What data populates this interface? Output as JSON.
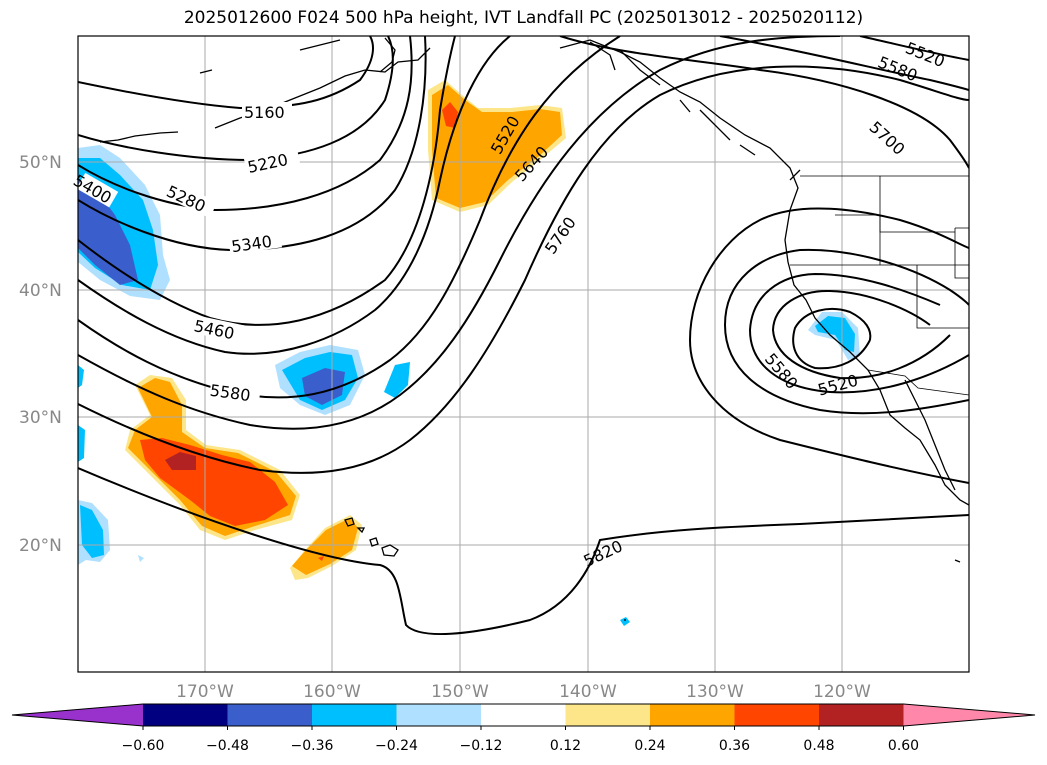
{
  "title": "2025012600 F024 500 hPa height, IVT Landfall PC (2025013012 - 2025020112)",
  "lat_labels": [
    "50°N",
    "40°N",
    "30°N",
    "20°N"
  ],
  "lon_labels": [
    "170°W",
    "160°W",
    "150°W",
    "140°W",
    "130°W",
    "120°W"
  ],
  "contour_labels": [
    "5160",
    "5220",
    "5280",
    "5340",
    "5400",
    "5460",
    "5580",
    "5520",
    "5640",
    "5760",
    "5820",
    "5520",
    "5580",
    "5700",
    "5580",
    "5520"
  ],
  "colorbar": {
    "ticks": [
      "−0.60",
      "−0.48",
      "−0.36",
      "−0.24",
      "−0.12",
      "0.12",
      "0.24",
      "0.36",
      "0.48",
      "0.60"
    ],
    "colors": [
      "#9932cc",
      "#000080",
      "#3a5fcd",
      "#00bfff",
      "#b0e0ff",
      "#ffffff",
      "#fde68a",
      "#ffa500",
      "#ff4500",
      "#b22222",
      "#ff88aa"
    ]
  }
}
